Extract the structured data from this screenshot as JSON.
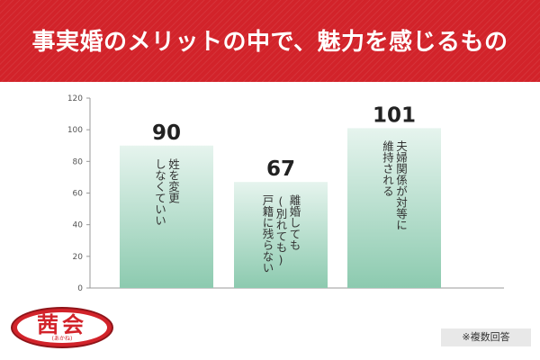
{
  "header": {
    "title": "事実婚のメリットの中で、魅力を感じるもの"
  },
  "chart_data": {
    "type": "bar",
    "title": "事実婚のメリットの中で、魅力を感じるもの",
    "categories": [
      "姓を変更\nしなくていい",
      "離婚しても\n(別れても)\n戸籍に残らない",
      "夫婦関係が対等に\n維持される"
    ],
    "values": [
      90,
      67,
      101
    ],
    "ylim": [
      0,
      120
    ],
    "yticks": [
      0,
      20,
      40,
      60,
      80,
      100,
      120
    ],
    "grid": false,
    "bar_color_top": "#e6f4ee",
    "bar_color_bottom": "#8ccaaf"
  },
  "logo": {
    "text": "茜会",
    "reading": "(あかね)"
  },
  "note": "※複数回答"
}
